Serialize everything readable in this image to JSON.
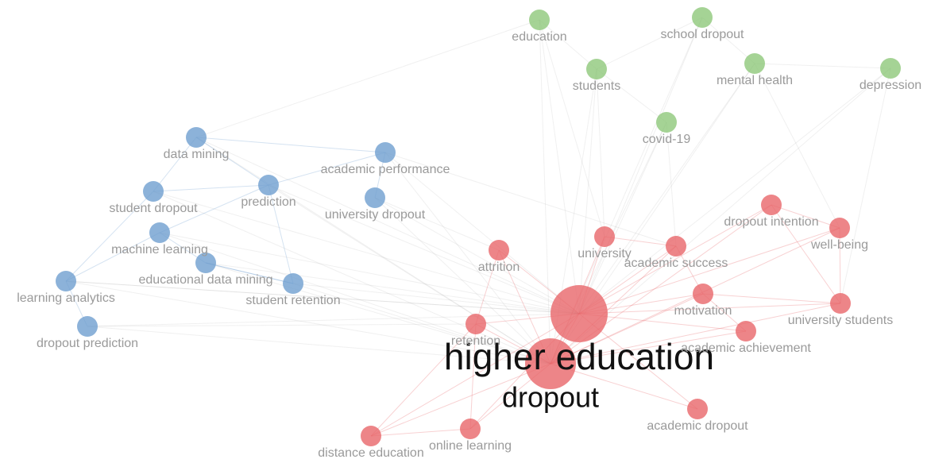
{
  "nodes": [
    {
      "label": "education"
    },
    {
      "label": "school dropout"
    },
    {
      "label": "students"
    },
    {
      "label": "mental health"
    },
    {
      "label": "depression"
    },
    {
      "label": "covid-19"
    },
    {
      "label": "data mining"
    },
    {
      "label": "academic performance"
    },
    {
      "label": "student dropout"
    },
    {
      "label": "prediction"
    },
    {
      "label": "university dropout"
    },
    {
      "label": "machine learning"
    },
    {
      "label": "educational data mining"
    },
    {
      "label": "learning analytics"
    },
    {
      "label": "student retention"
    },
    {
      "label": "dropout prediction"
    },
    {
      "label": "dropout intention"
    },
    {
      "label": "well-being"
    },
    {
      "label": "university"
    },
    {
      "label": "academic success"
    },
    {
      "label": "attrition"
    },
    {
      "label": "motivation"
    },
    {
      "label": "university students"
    },
    {
      "label": "higher education"
    },
    {
      "label": "retention"
    },
    {
      "label": "academic achievement"
    },
    {
      "label": "dropout"
    },
    {
      "label": "academic dropout"
    },
    {
      "label": "online learning"
    },
    {
      "label": "distance education"
    }
  ]
}
